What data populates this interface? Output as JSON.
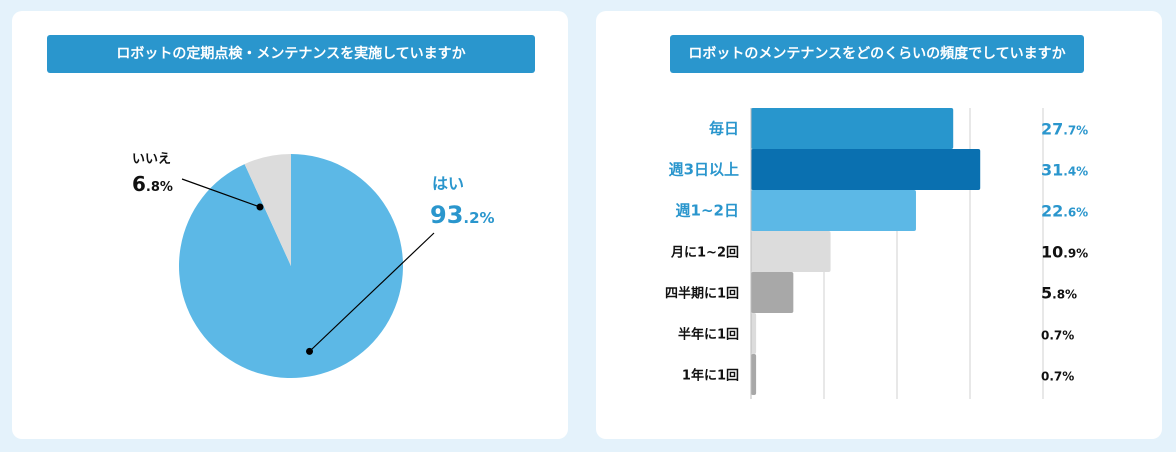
{
  "chart_data": [
    {
      "type": "pie",
      "title": "ロボットの定期点検・メンテナンスを実施していますか",
      "slices": [
        {
          "label": "はい",
          "value_int": "93",
          "value_dec": ".2%",
          "value": 93.2,
          "color": "#5cb8e6"
        },
        {
          "label": "いいえ",
          "value_int": "6",
          "value_dec": ".8%",
          "value": 6.8,
          "color": "#dcdcdc"
        }
      ]
    },
    {
      "type": "bar",
      "orientation": "horizontal",
      "title": "ロボットのメンテナンスをどのくらいの頻度でしていますか",
      "xlim": [
        0,
        40
      ],
      "grid": true,
      "categories": [
        "毎日",
        "週3日以上",
        "週1~2日",
        "月に1~2回",
        "四半期に1回",
        "半年に1回",
        "1年に1回"
      ],
      "values": [
        27.7,
        31.4,
        22.6,
        10.9,
        5.8,
        0.7,
        0.7
      ],
      "value_labels": [
        {
          "int": "27",
          "dec": ".7%"
        },
        {
          "int": "31",
          "dec": ".4%"
        },
        {
          "int": "22",
          "dec": ".6%"
        },
        {
          "int": "10",
          "dec": ".9%"
        },
        {
          "int": "5",
          "dec": ".8%"
        },
        {
          "int": "",
          "dec": "0.7%"
        },
        {
          "int": "",
          "dec": "0.7%"
        }
      ],
      "colors": [
        "#2896cd",
        "#0a70b0",
        "#5cb8e6",
        "#dcdcdc",
        "#a8a8a8",
        "#dcdcdc",
        "#a8a8a8"
      ],
      "label_colors": [
        "#2a96cd",
        "#2a96cd",
        "#2a96cd",
        "#111111",
        "#111111",
        "#111111",
        "#111111"
      ]
    }
  ]
}
